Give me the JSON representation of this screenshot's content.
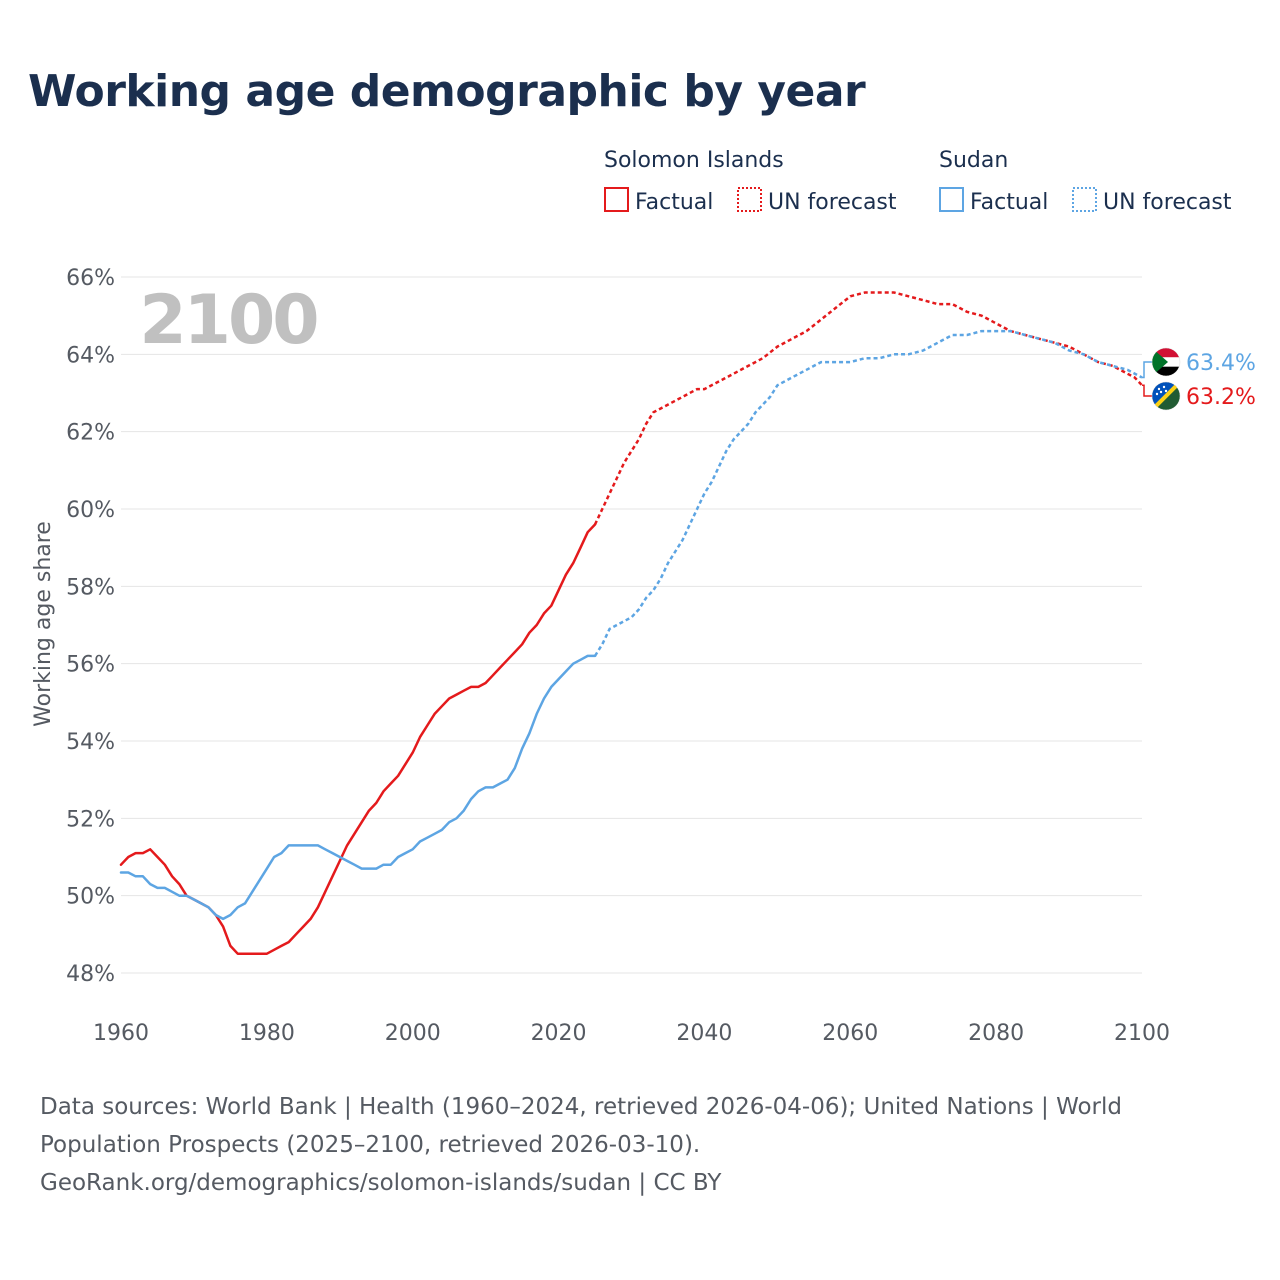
{
  "title": "Working age demographic by year",
  "legend": {
    "groups": [
      {
        "country": "Solomon Islands",
        "color": "#e41a1c",
        "factual_label": "Factual",
        "forecast_label": "UN forecast"
      },
      {
        "country": "Sudan",
        "color": "#5da5e3",
        "factual_label": "Factual",
        "forecast_label": "UN forecast"
      }
    ]
  },
  "year_watermark": "2100",
  "end_labels": [
    {
      "country": "Sudan",
      "text": "63.4%",
      "color": "#5da5e3",
      "flag": "sudan-flag-icon"
    },
    {
      "country": "Solomon Islands",
      "text": "63.2%",
      "color": "#e41a1c",
      "flag": "solomon-islands-flag-icon"
    }
  ],
  "footer": {
    "line1": "Data sources: World Bank | Health (1960–2024, retrieved 2026-04-06); United Nations | World",
    "line2": "Population Prospects (2025–2100, retrieved 2026-03-10).",
    "line3": "GeoRank.org/demographics/solomon-islands/sudan | CC BY"
  },
  "chart_data": {
    "type": "line",
    "title": "Working age demographic by year",
    "xlabel": "",
    "ylabel": "Working age share",
    "xlim": [
      1960,
      2100
    ],
    "ylim": [
      48,
      66
    ],
    "x_ticks": [
      "1960",
      "1980",
      "2000",
      "2020",
      "2040",
      "2060",
      "2080",
      "2100"
    ],
    "y_ticks": [
      "48%",
      "50%",
      "52%",
      "54%",
      "56%",
      "58%",
      "60%",
      "62%",
      "64%",
      "66%"
    ],
    "forecast_start": 2025,
    "series": [
      {
        "name": "Solomon Islands",
        "color": "#e41a1c",
        "points": [
          [
            1960,
            50.8
          ],
          [
            1961,
            51.0
          ],
          [
            1962,
            51.1
          ],
          [
            1963,
            51.1
          ],
          [
            1964,
            51.2
          ],
          [
            1965,
            51.0
          ],
          [
            1966,
            50.8
          ],
          [
            1967,
            50.5
          ],
          [
            1968,
            50.3
          ],
          [
            1969,
            50.0
          ],
          [
            1970,
            49.9
          ],
          [
            1971,
            49.8
          ],
          [
            1972,
            49.7
          ],
          [
            1973,
            49.5
          ],
          [
            1974,
            49.2
          ],
          [
            1975,
            48.7
          ],
          [
            1976,
            48.5
          ],
          [
            1977,
            48.5
          ],
          [
            1978,
            48.5
          ],
          [
            1979,
            48.5
          ],
          [
            1980,
            48.5
          ],
          [
            1981,
            48.6
          ],
          [
            1982,
            48.7
          ],
          [
            1983,
            48.8
          ],
          [
            1984,
            49.0
          ],
          [
            1985,
            49.2
          ],
          [
            1986,
            49.4
          ],
          [
            1987,
            49.7
          ],
          [
            1988,
            50.1
          ],
          [
            1989,
            50.5
          ],
          [
            1990,
            50.9
          ],
          [
            1991,
            51.3
          ],
          [
            1992,
            51.6
          ],
          [
            1993,
            51.9
          ],
          [
            1994,
            52.2
          ],
          [
            1995,
            52.4
          ],
          [
            1996,
            52.7
          ],
          [
            1997,
            52.9
          ],
          [
            1998,
            53.1
          ],
          [
            1999,
            53.4
          ],
          [
            2000,
            53.7
          ],
          [
            2001,
            54.1
          ],
          [
            2002,
            54.4
          ],
          [
            2003,
            54.7
          ],
          [
            2004,
            54.9
          ],
          [
            2005,
            55.1
          ],
          [
            2006,
            55.2
          ],
          [
            2007,
            55.3
          ],
          [
            2008,
            55.4
          ],
          [
            2009,
            55.4
          ],
          [
            2010,
            55.5
          ],
          [
            2011,
            55.7
          ],
          [
            2012,
            55.9
          ],
          [
            2013,
            56.1
          ],
          [
            2014,
            56.3
          ],
          [
            2015,
            56.5
          ],
          [
            2016,
            56.8
          ],
          [
            2017,
            57.0
          ],
          [
            2018,
            57.3
          ],
          [
            2019,
            57.5
          ],
          [
            2020,
            57.9
          ],
          [
            2021,
            58.3
          ],
          [
            2022,
            58.6
          ],
          [
            2023,
            59.0
          ],
          [
            2024,
            59.4
          ],
          [
            2025,
            59.6
          ],
          [
            2026,
            60.0
          ],
          [
            2027,
            60.4
          ],
          [
            2028,
            60.8
          ],
          [
            2029,
            61.2
          ],
          [
            2030,
            61.5
          ],
          [
            2031,
            61.8
          ],
          [
            2032,
            62.2
          ],
          [
            2033,
            62.5
          ],
          [
            2034,
            62.6
          ],
          [
            2035,
            62.7
          ],
          [
            2036,
            62.8
          ],
          [
            2037,
            62.9
          ],
          [
            2038,
            63.0
          ],
          [
            2039,
            63.1
          ],
          [
            2040,
            63.1
          ],
          [
            2042,
            63.3
          ],
          [
            2044,
            63.5
          ],
          [
            2046,
            63.7
          ],
          [
            2048,
            63.9
          ],
          [
            2050,
            64.2
          ],
          [
            2052,
            64.4
          ],
          [
            2054,
            64.6
          ],
          [
            2056,
            64.9
          ],
          [
            2058,
            65.2
          ],
          [
            2060,
            65.5
          ],
          [
            2062,
            65.6
          ],
          [
            2064,
            65.6
          ],
          [
            2066,
            65.6
          ],
          [
            2068,
            65.5
          ],
          [
            2070,
            65.4
          ],
          [
            2072,
            65.3
          ],
          [
            2074,
            65.3
          ],
          [
            2076,
            65.1
          ],
          [
            2078,
            65.0
          ],
          [
            2080,
            64.8
          ],
          [
            2082,
            64.6
          ],
          [
            2084,
            64.5
          ],
          [
            2086,
            64.4
          ],
          [
            2088,
            64.3
          ],
          [
            2090,
            64.2
          ],
          [
            2092,
            64.0
          ],
          [
            2094,
            63.8
          ],
          [
            2096,
            63.7
          ],
          [
            2098,
            63.5
          ],
          [
            2099,
            63.4
          ],
          [
            2100,
            63.2
          ]
        ]
      },
      {
        "name": "Sudan",
        "color": "#5da5e3",
        "points": [
          [
            1960,
            50.6
          ],
          [
            1961,
            50.6
          ],
          [
            1962,
            50.5
          ],
          [
            1963,
            50.5
          ],
          [
            1964,
            50.3
          ],
          [
            1965,
            50.2
          ],
          [
            1966,
            50.2
          ],
          [
            1967,
            50.1
          ],
          [
            1968,
            50.0
          ],
          [
            1969,
            50.0
          ],
          [
            1970,
            49.9
          ],
          [
            1971,
            49.8
          ],
          [
            1972,
            49.7
          ],
          [
            1973,
            49.5
          ],
          [
            1974,
            49.4
          ],
          [
            1975,
            49.5
          ],
          [
            1976,
            49.7
          ],
          [
            1977,
            49.8
          ],
          [
            1978,
            50.1
          ],
          [
            1979,
            50.4
          ],
          [
            1980,
            50.7
          ],
          [
            1981,
            51.0
          ],
          [
            1982,
            51.1
          ],
          [
            1983,
            51.3
          ],
          [
            1984,
            51.3
          ],
          [
            1985,
            51.3
          ],
          [
            1986,
            51.3
          ],
          [
            1987,
            51.3
          ],
          [
            1988,
            51.2
          ],
          [
            1989,
            51.1
          ],
          [
            1990,
            51.0
          ],
          [
            1991,
            50.9
          ],
          [
            1992,
            50.8
          ],
          [
            1993,
            50.7
          ],
          [
            1994,
            50.7
          ],
          [
            1995,
            50.7
          ],
          [
            1996,
            50.8
          ],
          [
            1997,
            50.8
          ],
          [
            1998,
            51.0
          ],
          [
            1999,
            51.1
          ],
          [
            2000,
            51.2
          ],
          [
            2001,
            51.4
          ],
          [
            2002,
            51.5
          ],
          [
            2003,
            51.6
          ],
          [
            2004,
            51.7
          ],
          [
            2005,
            51.9
          ],
          [
            2006,
            52.0
          ],
          [
            2007,
            52.2
          ],
          [
            2008,
            52.5
          ],
          [
            2009,
            52.7
          ],
          [
            2010,
            52.8
          ],
          [
            2011,
            52.8
          ],
          [
            2012,
            52.9
          ],
          [
            2013,
            53.0
          ],
          [
            2014,
            53.3
          ],
          [
            2015,
            53.8
          ],
          [
            2016,
            54.2
          ],
          [
            2017,
            54.7
          ],
          [
            2018,
            55.1
          ],
          [
            2019,
            55.4
          ],
          [
            2020,
            55.6
          ],
          [
            2021,
            55.8
          ],
          [
            2022,
            56.0
          ],
          [
            2023,
            56.1
          ],
          [
            2024,
            56.2
          ],
          [
            2025,
            56.2
          ],
          [
            2026,
            56.5
          ],
          [
            2027,
            56.9
          ],
          [
            2028,
            57.0
          ],
          [
            2029,
            57.1
          ],
          [
            2030,
            57.2
          ],
          [
            2031,
            57.4
          ],
          [
            2032,
            57.7
          ],
          [
            2033,
            57.9
          ],
          [
            2034,
            58.2
          ],
          [
            2035,
            58.6
          ],
          [
            2036,
            58.9
          ],
          [
            2037,
            59.2
          ],
          [
            2038,
            59.6
          ],
          [
            2039,
            60.0
          ],
          [
            2040,
            60.4
          ],
          [
            2041,
            60.7
          ],
          [
            2042,
            61.1
          ],
          [
            2043,
            61.5
          ],
          [
            2044,
            61.8
          ],
          [
            2045,
            62.0
          ],
          [
            2046,
            62.2
          ],
          [
            2047,
            62.5
          ],
          [
            2048,
            62.7
          ],
          [
            2049,
            62.9
          ],
          [
            2050,
            63.2
          ],
          [
            2052,
            63.4
          ],
          [
            2054,
            63.6
          ],
          [
            2056,
            63.8
          ],
          [
            2058,
            63.8
          ],
          [
            2060,
            63.8
          ],
          [
            2062,
            63.9
          ],
          [
            2064,
            63.9
          ],
          [
            2066,
            64.0
          ],
          [
            2068,
            64.0
          ],
          [
            2070,
            64.1
          ],
          [
            2072,
            64.3
          ],
          [
            2074,
            64.5
          ],
          [
            2076,
            64.5
          ],
          [
            2078,
            64.6
          ],
          [
            2080,
            64.6
          ],
          [
            2082,
            64.6
          ],
          [
            2084,
            64.5
          ],
          [
            2086,
            64.4
          ],
          [
            2088,
            64.3
          ],
          [
            2090,
            64.1
          ],
          [
            2092,
            64.0
          ],
          [
            2094,
            63.8
          ],
          [
            2096,
            63.7
          ],
          [
            2098,
            63.6
          ],
          [
            2100,
            63.4
          ]
        ]
      }
    ]
  }
}
